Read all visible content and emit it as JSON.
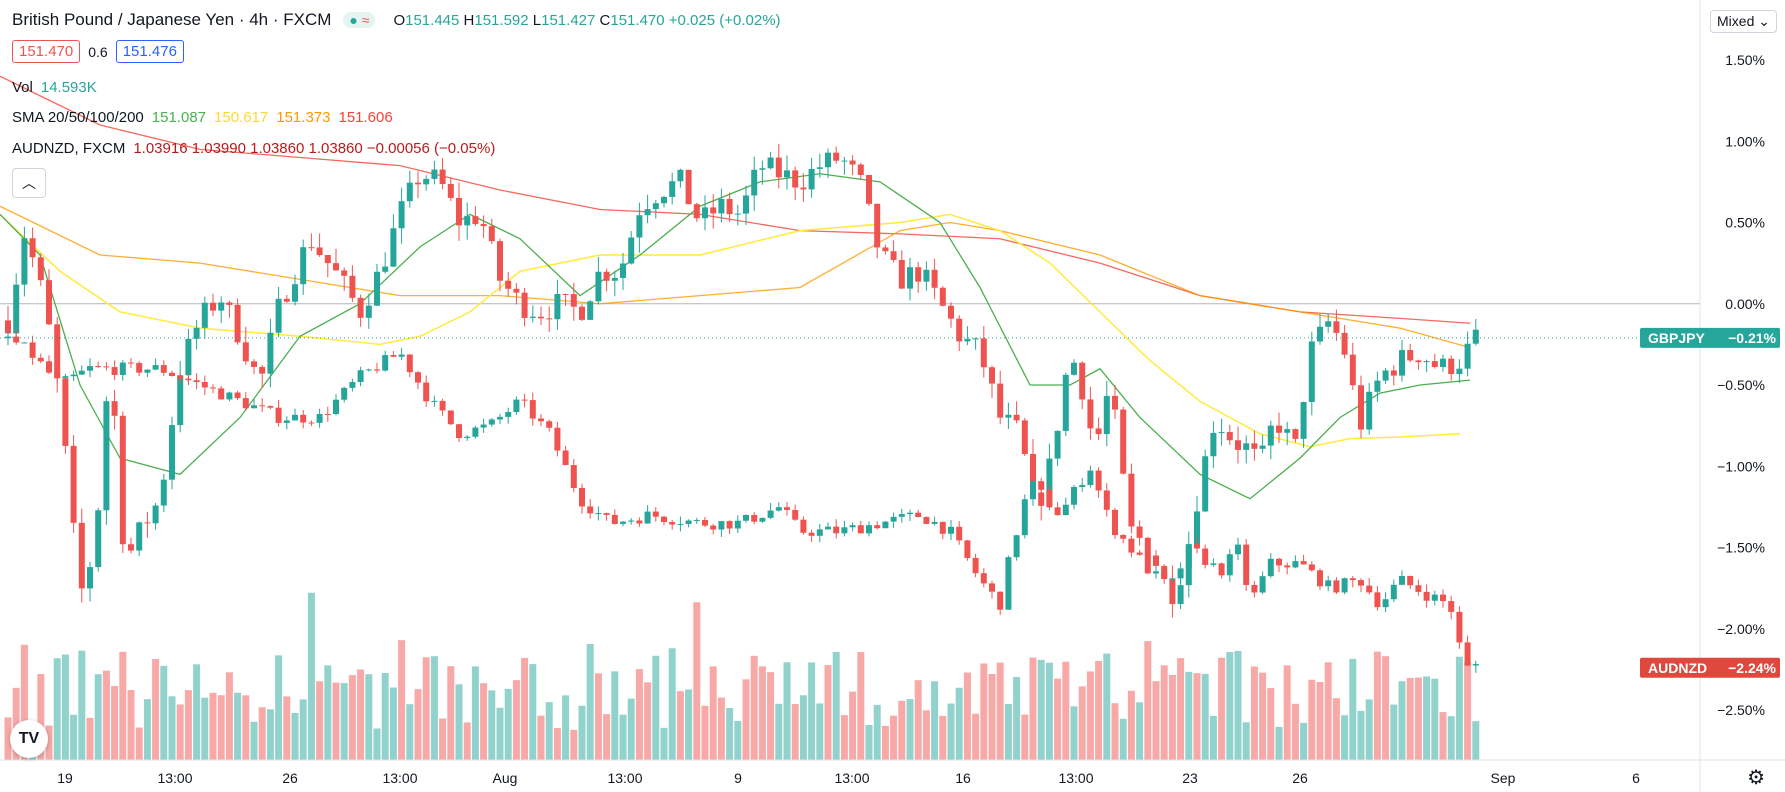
{
  "header": {
    "title": "British Pound / Japanese Yen · 4h · FXCM",
    "ohlc": {
      "o_label": "O",
      "o": "151.445",
      "h_label": "H",
      "h": "151.592",
      "l_label": "L",
      "l": "151.427",
      "c_label": "C",
      "c": "151.470",
      "change": "+0.025 (+0.02%)"
    },
    "bid": "151.470",
    "spread": "0.6",
    "ask": "151.476"
  },
  "legend": {
    "vol_label": "Vol",
    "vol_value": "14.593K",
    "sma_label": "SMA 20/50/100/200",
    "sma_values": [
      "151.087",
      "150.617",
      "151.373",
      "151.606"
    ],
    "compare_label": "AUDNZD, FXCM",
    "compare_values": "1.03916  1.03990  1.03860  1.03860  −0.00056 (−0.05%)"
  },
  "controls": {
    "scale_mode": "Mixed"
  },
  "colors": {
    "up": "#26a69a",
    "down": "#ef5350",
    "sma20": "#4caf50",
    "sma50": "#ffeb3b",
    "sma100": "#ff9800",
    "sma200": "#f44336"
  },
  "chart_data": {
    "type": "candlestick",
    "y_axis_ticks": [
      "1.50%",
      "1.00%",
      "0.50%",
      "0.00%",
      "−0.50%",
      "−1.00%",
      "−1.50%",
      "−2.00%",
      "−2.50%"
    ],
    "y_range_percent": [
      -2.7,
      1.65
    ],
    "x_axis_ticks": [
      "19",
      "13:00",
      "26",
      "13:00",
      "Aug",
      "13:00",
      "9",
      "13:00",
      "16",
      "13:00",
      "23",
      "26",
      "Sep",
      "6"
    ],
    "price_labels": [
      {
        "symbol": "GBPJPY",
        "value": "−0.21%"
      },
      {
        "symbol": "AUDNZD",
        "value": "−2.24%"
      }
    ]
  }
}
